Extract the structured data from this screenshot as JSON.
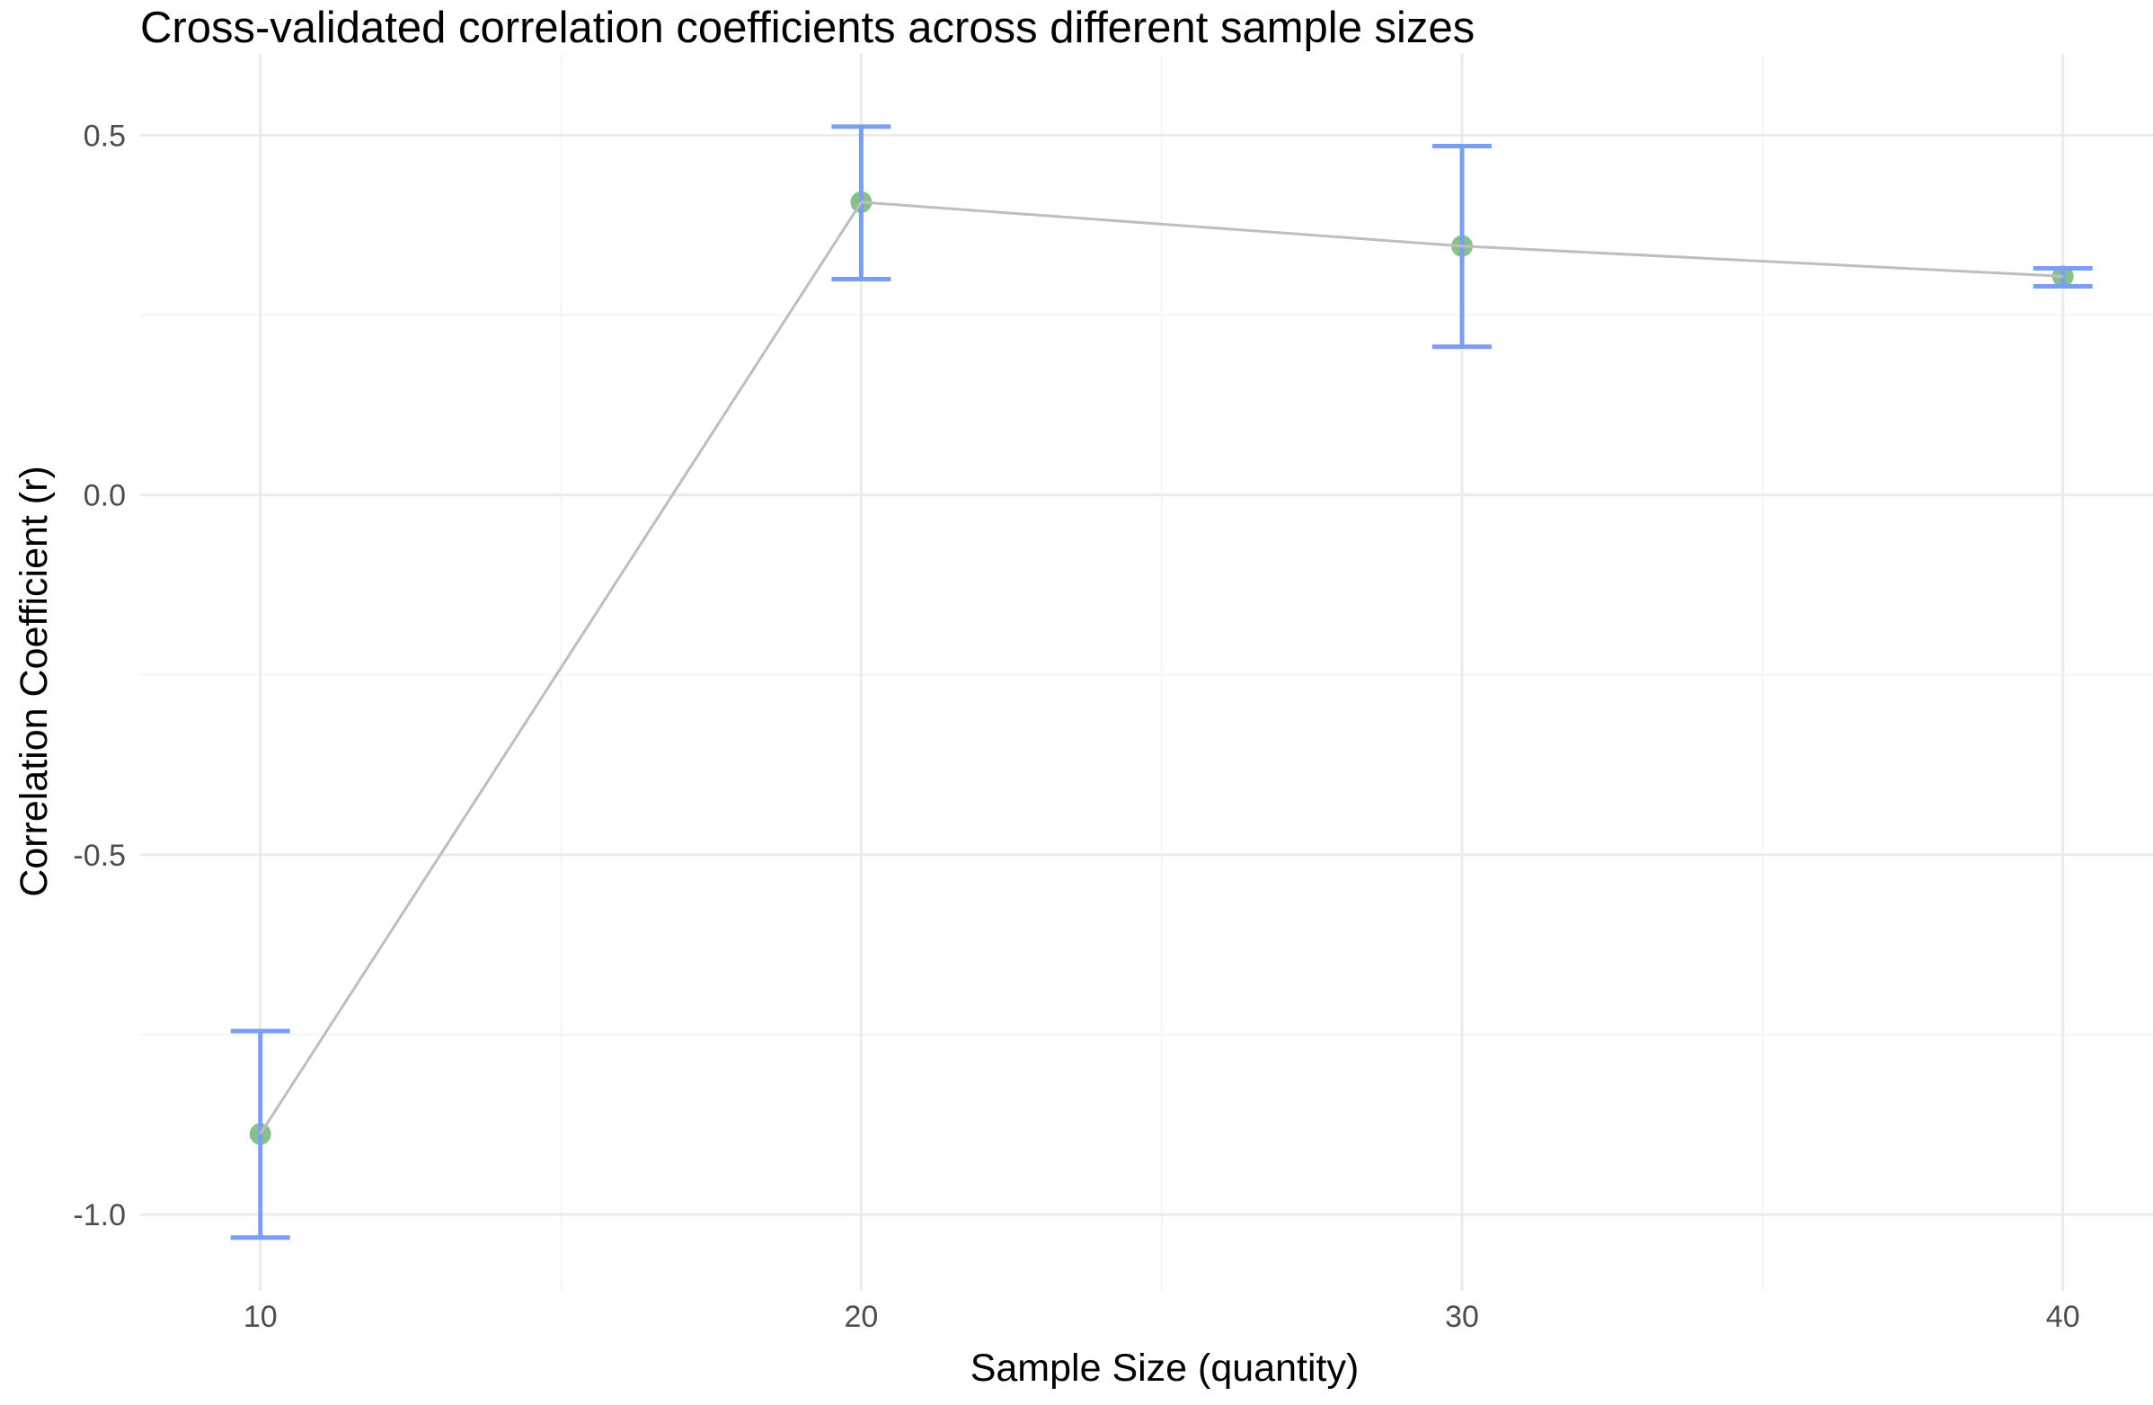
{
  "chart_data": {
    "type": "line",
    "title": "Cross-validated correlation coefficients across different sample sizes",
    "xlabel": "Sample Size (quantity)",
    "ylabel": "Correlation Coefficient (r)",
    "x": [
      10,
      20,
      30,
      40
    ],
    "y": [
      -0.888,
      0.407,
      0.346,
      0.304
    ],
    "error_lower": [
      -1.032,
      0.3,
      0.206,
      0.29
    ],
    "error_upper": [
      -0.745,
      0.512,
      0.485,
      0.315
    ],
    "xlim": [
      8,
      41.5
    ],
    "ylim": [
      -1.106,
      0.613
    ],
    "x_ticks": [
      10,
      20,
      30,
      40
    ],
    "x_tick_labels": [
      "10",
      "20",
      "30",
      "40"
    ],
    "y_ticks": [
      -1.0,
      -0.5,
      0.0,
      0.5
    ],
    "y_tick_labels": [
      "-1.0",
      "-0.5",
      "0.0",
      "0.5"
    ],
    "grid": true,
    "colors": {
      "line": "#BEBEBE",
      "point": "#88C08A",
      "errorbar": "#7B9EF0",
      "grid": "#EBEBEB"
    }
  }
}
